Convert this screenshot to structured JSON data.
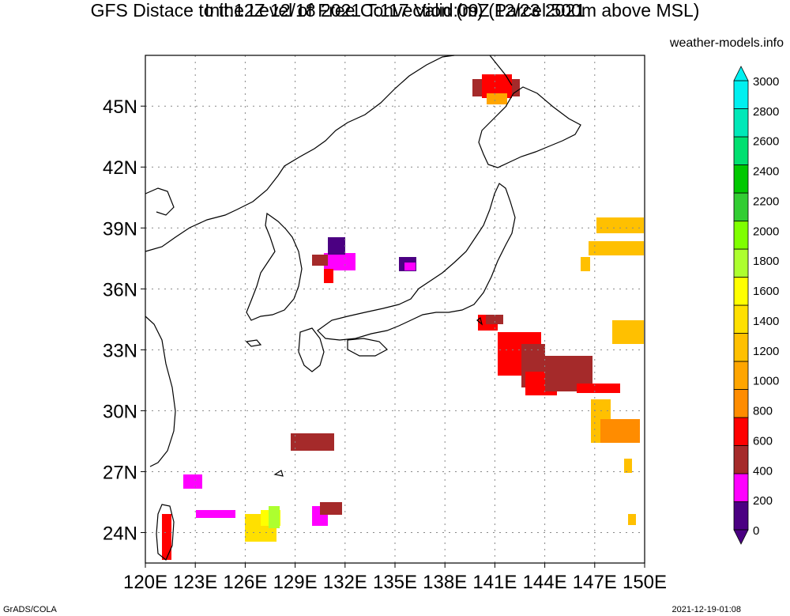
{
  "header": {
    "title_line1": "GFS Distace to the Level of Free Convection (m) (Parcel:500m above MSL)",
    "title_line2": "Init:12Z 12/18 2021 T:117 Valid:09Z 12/23 2021",
    "site": "weather-models.info"
  },
  "map": {
    "lon_range": [
      120,
      150
    ],
    "lat_range": [
      22.5,
      47.5
    ],
    "lon_ticks": [
      "120E",
      "123E",
      "126E",
      "129E",
      "132E",
      "135E",
      "138E",
      "141E",
      "144E",
      "147E",
      "150E"
    ],
    "lat_ticks": [
      "24N",
      "27N",
      "30N",
      "33N",
      "36N",
      "39N",
      "42N",
      "45N"
    ],
    "grid": true
  },
  "colorbar": {
    "labels": [
      "0",
      "200",
      "400",
      "600",
      "800",
      "1000",
      "1200",
      "1400",
      "1600",
      "1800",
      "2000",
      "2200",
      "2400",
      "2600",
      "2800",
      "3000"
    ],
    "colors": [
      "#4b0082",
      "#ff00ff",
      "#a52a2a",
      "#ff0000",
      "#ff8c00",
      "#ffa500",
      "#ffc000",
      "#ffe000",
      "#ffff00",
      "#adff2f",
      "#7fff00",
      "#32cd32",
      "#00c800",
      "#00e070",
      "#00e8b8",
      "#00f0f0"
    ]
  },
  "footer": {
    "left": "GrADS/COLA",
    "right": "2021-12-19-01:08"
  }
}
